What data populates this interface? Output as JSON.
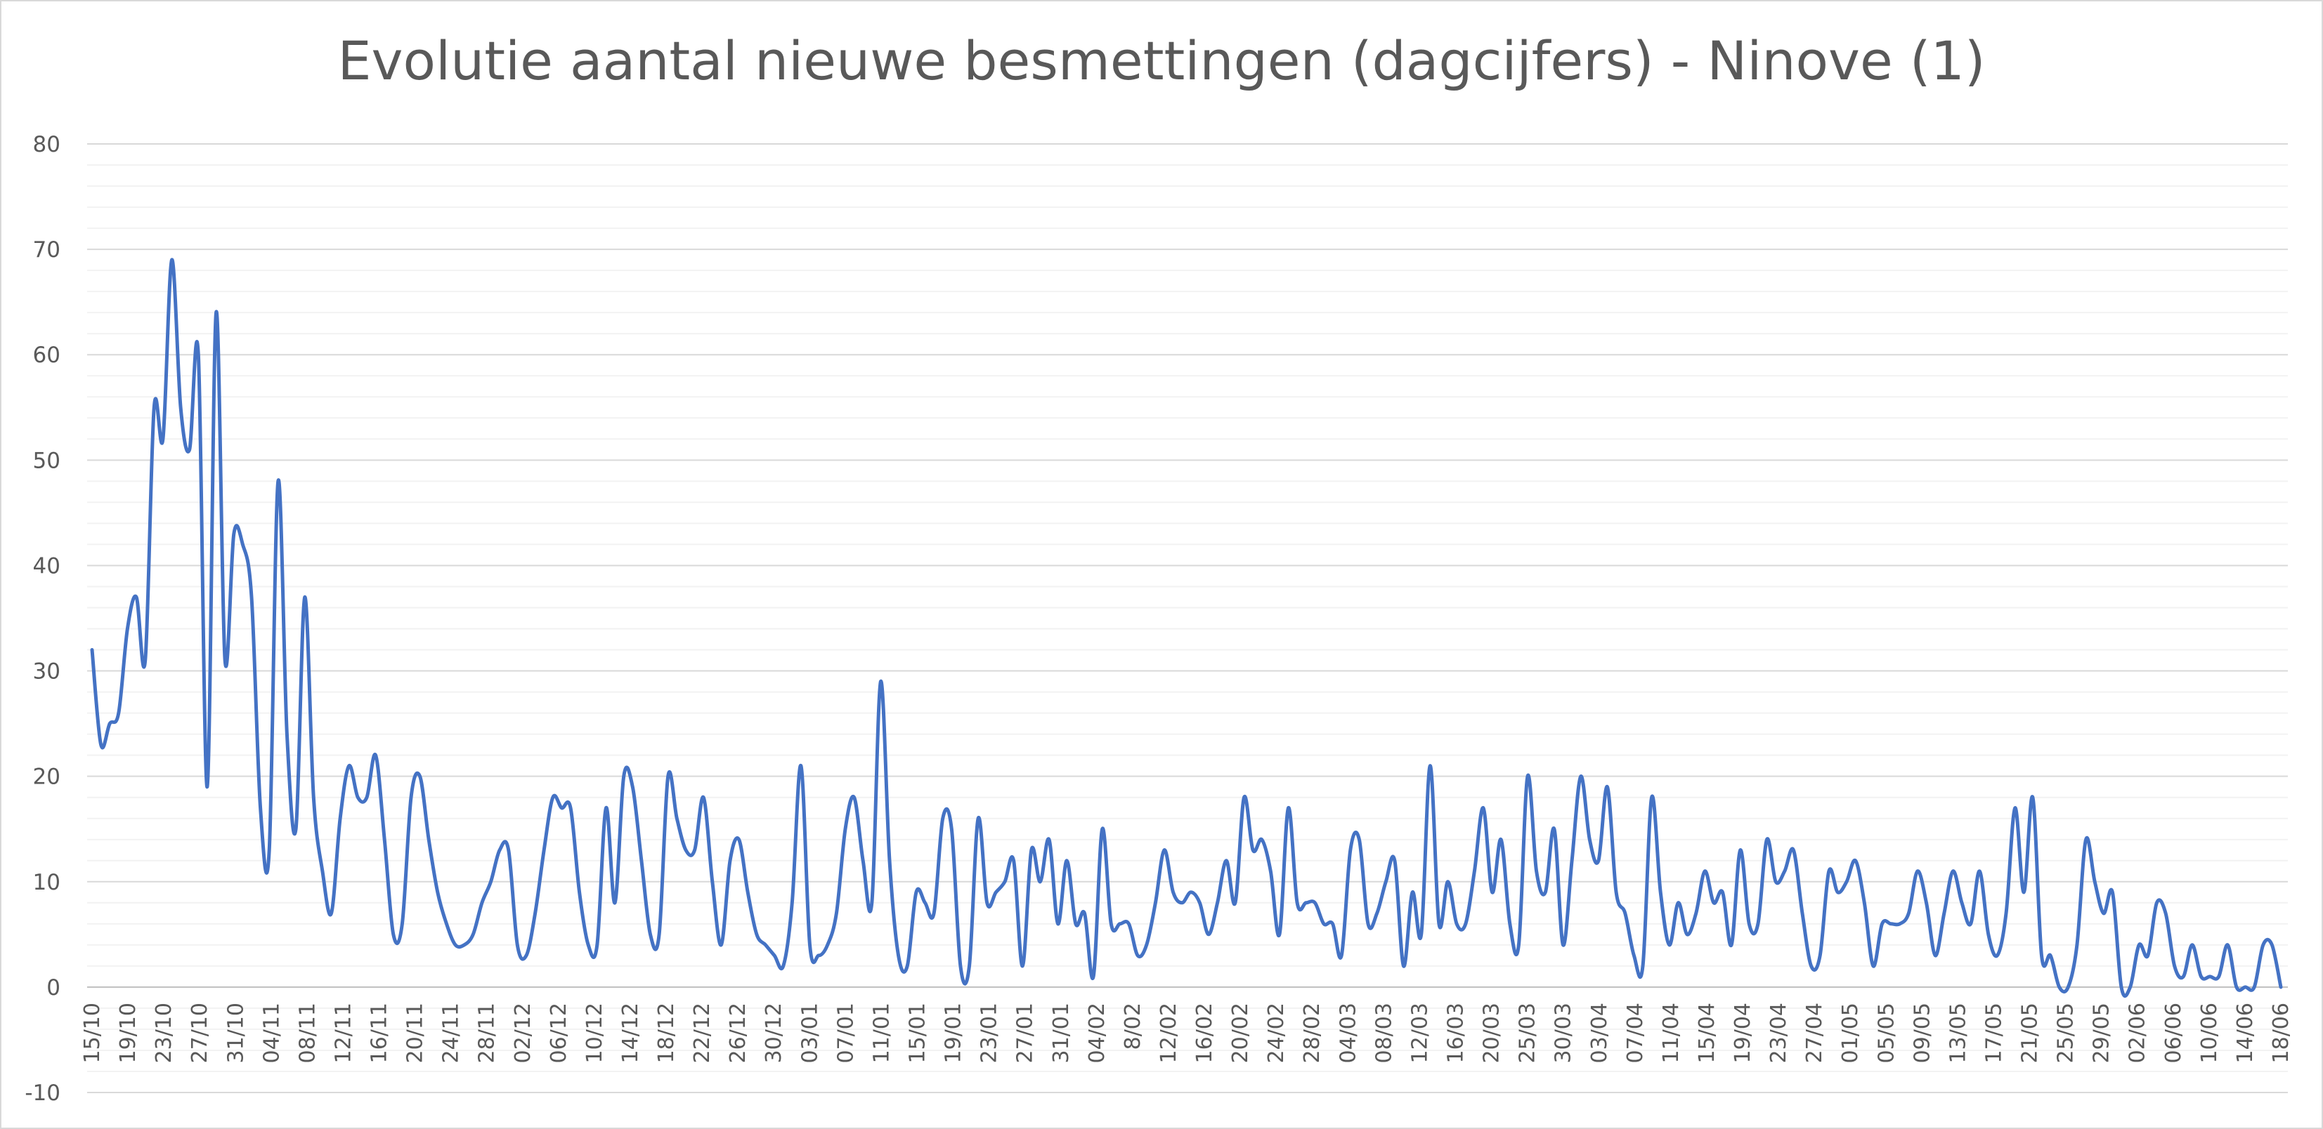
{
  "chart_data": {
    "type": "line",
    "title": "Evolutie aantal nieuwe besmettingen (dagcijfers) - Ninove (1)",
    "xlabel": "",
    "ylabel": "",
    "ylim": [
      -10,
      80
    ],
    "yticks": [
      -10,
      0,
      10,
      20,
      30,
      40,
      50,
      60,
      70,
      80
    ],
    "grid": true,
    "legend": "none",
    "colors": {
      "line": "#4472c4",
      "grid_major": "#d9d9d9",
      "grid_minor": "#f2f2f2",
      "axis": "#bfbfbf",
      "text": "#595959"
    },
    "x_tick_labels": [
      "15/10",
      "19/10",
      "23/10",
      "27/10",
      "31/10",
      "04/11",
      "08/11",
      "12/11",
      "16/11",
      "20/11",
      "24/11",
      "28/11",
      "02/12",
      "06/12",
      "10/12",
      "14/12",
      "18/12",
      "22/12",
      "26/12",
      "30/12",
      "03/01",
      "07/01",
      "11/01",
      "15/01",
      "19/01",
      "23/01",
      "27/01",
      "31/01",
      "04/02",
      "8/02",
      "12/02",
      "16/02",
      "20/02",
      "24/02",
      "28/02",
      "04/03",
      "08/03",
      "12/03",
      "16/03",
      "20/03",
      "25/03",
      "30/03",
      "03/04",
      "07/04",
      "11/04",
      "15/04",
      "19/04",
      "23/04",
      "27/04",
      "01/05",
      "05/05",
      "09/05",
      "13/05",
      "17/05",
      "21/05",
      "25/05",
      "29/05",
      "02/06",
      "06/06",
      "10/06",
      "14/06",
      "18/06"
    ],
    "series": [
      {
        "values": [
          32,
          23,
          25,
          26,
          34,
          37,
          31,
          55,
          52,
          69,
          55,
          51,
          60,
          19,
          64,
          31,
          43,
          42,
          37,
          17,
          13,
          48,
          24,
          15,
          37,
          18,
          11,
          7,
          16,
          21,
          18,
          18,
          22,
          14,
          5,
          6,
          18,
          20,
          14,
          9,
          6,
          4,
          4,
          5,
          8,
          10,
          13,
          13,
          4,
          3,
          7,
          13,
          18,
          17,
          17,
          9,
          4,
          4,
          17,
          8,
          20,
          19,
          12,
          5,
          5,
          20,
          16,
          13,
          13,
          18,
          10,
          4,
          12,
          14,
          9,
          5,
          4,
          3,
          2,
          8,
          21,
          4,
          3,
          4,
          7,
          15,
          18,
          12,
          8,
          29,
          12,
          3,
          2,
          9,
          8,
          7,
          16,
          15,
          2,
          2,
          16,
          8,
          9,
          10,
          12,
          2,
          13,
          10,
          14,
          6,
          12,
          6,
          7,
          1,
          15,
          6,
          6,
          6,
          3,
          4,
          8,
          13,
          9,
          8,
          9,
          8,
          5,
          8,
          12,
          8,
          18,
          13,
          14,
          11,
          5,
          17,
          8,
          8,
          8,
          6,
          6,
          3,
          13,
          14,
          6,
          7,
          10,
          12,
          2,
          9,
          5,
          21,
          6,
          10,
          6,
          6,
          11,
          17,
          9,
          14,
          6,
          4,
          20,
          11,
          9,
          15,
          4,
          12,
          20,
          14,
          12,
          19,
          9,
          7,
          3,
          2,
          18,
          9,
          4,
          8,
          5,
          7,
          11,
          8,
          9,
          4,
          13,
          6,
          6,
          14,
          10,
          11,
          13,
          7,
          2,
          3,
          11,
          9,
          10,
          12,
          8,
          2,
          6,
          6,
          6,
          7,
          11,
          8,
          3,
          7,
          11,
          8,
          6,
          11,
          5,
          3,
          7,
          17,
          9,
          18,
          3,
          3,
          0,
          0,
          4,
          14,
          10,
          7,
          9,
          0,
          0,
          4,
          3,
          8,
          7,
          2,
          1,
          4,
          1,
          1,
          1,
          4,
          0,
          0,
          0,
          4,
          4,
          0
        ]
      }
    ]
  }
}
